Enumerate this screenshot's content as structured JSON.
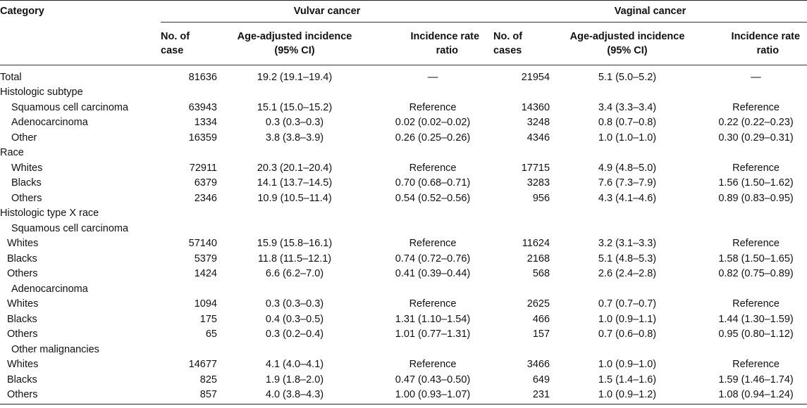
{
  "header": {
    "category": "Category",
    "vulvar": "Vulvar cancer",
    "vaginal": "Vaginal cancer",
    "vulvar_cols": {
      "cases_l1": "No. of",
      "cases_l2": "case",
      "incidence_l1": "Age-adjusted incidence",
      "incidence_l2": "(95% CI)",
      "ratio_l1": "Incidence rate",
      "ratio_l2": "ratio"
    },
    "vaginal_cols": {
      "cases_l1": "No. of",
      "cases_l2": "cases",
      "incidence_l1": "Age-adjusted incidence",
      "incidence_l2": "(95% CI)",
      "ratio_l1": "Incidence rate",
      "ratio_l2": "ratio"
    }
  },
  "rows": [
    {
      "label": "Total",
      "indent": 0,
      "v_cases": "81636",
      "v_inc": "19.2 (19.1–19.4)",
      "v_irr": "—",
      "g_cases": "21954",
      "g_inc": "5.1 (5.0–5.2)",
      "g_irr": "—"
    },
    {
      "label": "Histologic subtype",
      "indent": 0,
      "v_cases": "",
      "v_inc": "",
      "v_irr": "",
      "g_cases": "",
      "g_inc": "",
      "g_irr": ""
    },
    {
      "label": "Squamous cell carcinoma",
      "indent": 1,
      "v_cases": "63943",
      "v_inc": "15.1 (15.0–15.2)",
      "v_irr": "Reference",
      "g_cases": "14360",
      "g_inc": "3.4 (3.3–3.4)",
      "g_irr": "Reference"
    },
    {
      "label": "Adenocarcinoma",
      "indent": 1,
      "v_cases": "1334",
      "v_inc": "0.3 (0.3–0.3)",
      "v_irr": "0.02 (0.02–0.02)",
      "g_cases": "3248",
      "g_inc": "0.8 (0.7–0.8)",
      "g_irr": "0.22 (0.22–0.23)"
    },
    {
      "label": "Other",
      "indent": 1,
      "v_cases": "16359",
      "v_inc": "3.8 (3.8–3.9)",
      "v_irr": "0.26 (0.25–0.26)",
      "g_cases": "4346",
      "g_inc": "1.0 (1.0–1.0)",
      "g_irr": "0.30 (0.29–0.31)"
    },
    {
      "label": "Race",
      "indent": 0,
      "v_cases": "",
      "v_inc": "",
      "v_irr": "",
      "g_cases": "",
      "g_inc": "",
      "g_irr": ""
    },
    {
      "label": "Whites",
      "indent": 1,
      "v_cases": "72911",
      "v_inc": "20.3 (20.1–20.4)",
      "v_irr": "Reference",
      "g_cases": "17715",
      "g_inc": "4.9 (4.8–5.0)",
      "g_irr": "Reference"
    },
    {
      "label": "Blacks",
      "indent": 1,
      "v_cases": "6379",
      "v_inc": "14.1 (13.7–14.5)",
      "v_irr": "0.70 (0.68–0.71)",
      "g_cases": "3283",
      "g_inc": "7.6 (7.3–7.9)",
      "g_irr": "1.56 (1.50–1.62)"
    },
    {
      "label": "Others",
      "indent": 1,
      "v_cases": "2346",
      "v_inc": "10.9 (10.5–11.4)",
      "v_irr": "0.54 (0.52–0.56)",
      "g_cases": "956",
      "g_inc": "4.3 (4.1–4.6)",
      "g_irr": "0.89 (0.83–0.95)"
    },
    {
      "label": "Histologic type X race",
      "indent": 0,
      "v_cases": "",
      "v_inc": "",
      "v_irr": "",
      "g_cases": "",
      "g_inc": "",
      "g_irr": ""
    },
    {
      "label": "Squamous cell carcinoma",
      "indent": 1,
      "v_cases": "",
      "v_inc": "",
      "v_irr": "",
      "g_cases": "",
      "g_inc": "",
      "g_irr": ""
    },
    {
      "label": "Whites",
      "indent": 3,
      "v_cases": "57140",
      "v_inc": "15.9 (15.8–16.1)",
      "v_irr": "Reference",
      "g_cases": "11624",
      "g_inc": "3.2 (3.1–3.3)",
      "g_irr": "Reference"
    },
    {
      "label": "Blacks",
      "indent": 3,
      "v_cases": "5379",
      "v_inc": "11.8 (11.5–12.1)",
      "v_irr": "0.74 (0.72–0.76)",
      "g_cases": "2168",
      "g_inc": "5.1 (4.8–5.3)",
      "g_irr": "1.58 (1.50–1.65)"
    },
    {
      "label": "Others",
      "indent": 3,
      "v_cases": "1424",
      "v_inc": "6.6 (6.2–7.0)",
      "v_irr": "0.41 (0.39–0.44)",
      "g_cases": "568",
      "g_inc": "2.6 (2.4–2.8)",
      "g_irr": "0.82 (0.75–0.89)"
    },
    {
      "label": "Adenocarcinoma",
      "indent": 1,
      "v_cases": "",
      "v_inc": "",
      "v_irr": "",
      "g_cases": "",
      "g_inc": "",
      "g_irr": ""
    },
    {
      "label": "Whites",
      "indent": 3,
      "v_cases": "1094",
      "v_inc": "0.3 (0.3–0.3)",
      "v_irr": "Reference",
      "g_cases": "2625",
      "g_inc": "0.7 (0.7–0.7)",
      "g_irr": "Reference"
    },
    {
      "label": "Blacks",
      "indent": 3,
      "v_cases": "175",
      "v_inc": "0.4 (0.3–0.5)",
      "v_irr": "1.31 (1.10–1.54)",
      "g_cases": "466",
      "g_inc": "1.0 (0.9–1.1)",
      "g_irr": "1.44 (1.30–1.59)"
    },
    {
      "label": "Others",
      "indent": 3,
      "v_cases": "65",
      "v_inc": "0.3 (0.2–0.4)",
      "v_irr": "1.01 (0.77–1.31)",
      "g_cases": "157",
      "g_inc": "0.7 (0.6–0.8)",
      "g_irr": "0.95 (0.80–1.12)"
    },
    {
      "label": "Other malignancies",
      "indent": 1,
      "v_cases": "",
      "v_inc": "",
      "v_irr": "",
      "g_cases": "",
      "g_inc": "",
      "g_irr": ""
    },
    {
      "label": "Whites",
      "indent": 3,
      "v_cases": "14677",
      "v_inc": "4.1 (4.0–4.1)",
      "v_irr": "Reference",
      "g_cases": "3466",
      "g_inc": "1.0 (0.9–1.0)",
      "g_irr": "Reference"
    },
    {
      "label": "Blacks",
      "indent": 3,
      "v_cases": "825",
      "v_inc": "1.9 (1.8–2.0)",
      "v_irr": "0.47 (0.43–0.50)",
      "g_cases": "649",
      "g_inc": "1.5 (1.4–1.6)",
      "g_irr": "1.59 (1.46–1.74)"
    },
    {
      "label": "Others",
      "indent": 3,
      "v_cases": "857",
      "v_inc": "4.0 (3.8–4.3)",
      "v_irr": "1.00 (0.93–1.07)",
      "g_cases": "231",
      "g_inc": "1.0 (0.9–1.2)",
      "g_irr": "1.08 (0.94–1.24)"
    }
  ]
}
